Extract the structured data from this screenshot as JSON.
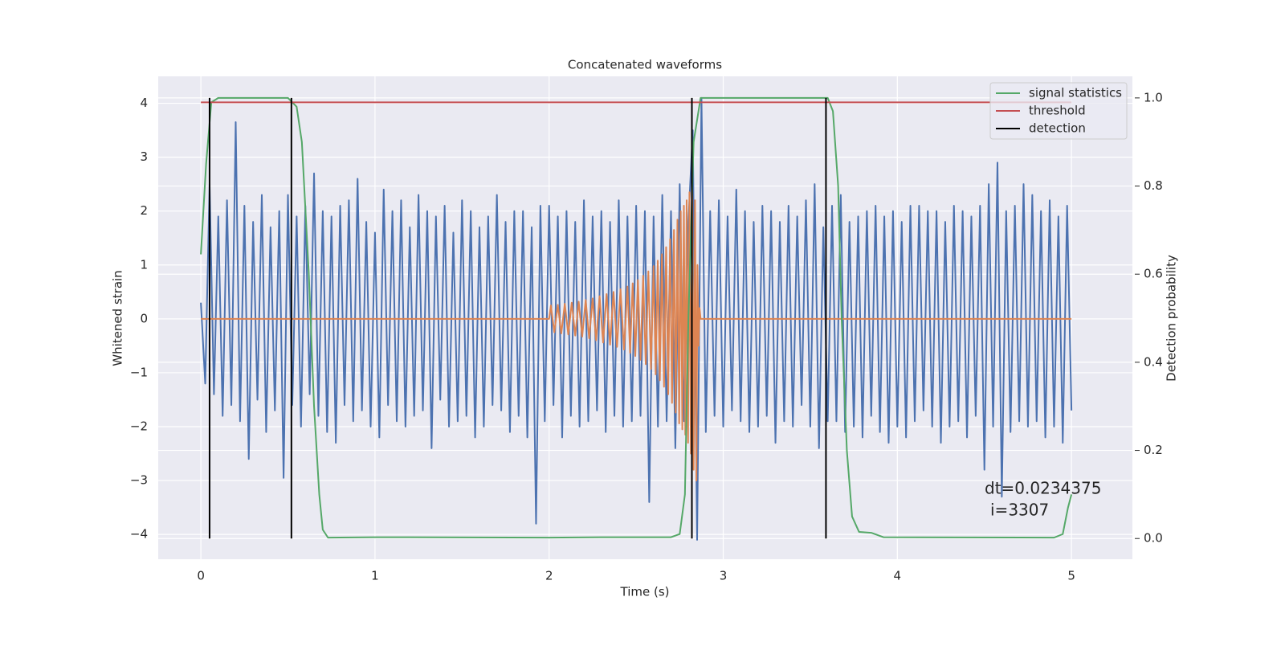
{
  "chart_data": {
    "type": "line",
    "title": "Concatenated waveforms",
    "xlabel": "Time (s)",
    "ylabel": "Whitened strain",
    "y2label": "Detection probability",
    "xlim": [
      -0.245,
      5.35
    ],
    "ylim": [
      -4.46,
      4.5
    ],
    "y2lim": [
      -0.047,
      1.049
    ],
    "xticks": [
      0,
      1,
      2,
      3,
      4,
      5
    ],
    "yticks": [
      {
        "value": -4,
        "label": "−4"
      },
      {
        "value": -3,
        "label": "−3"
      },
      {
        "value": -2,
        "label": "−2"
      },
      {
        "value": -1,
        "label": "−1"
      },
      0,
      1,
      2,
      3,
      4
    ],
    "y2ticks": [
      {
        "value": 0,
        "label": "0.0"
      },
      0.2,
      0.4,
      0.6,
      0.8,
      {
        "value": 1,
        "label": "1.0"
      }
    ],
    "grid": true,
    "legend": "upper right",
    "annotations": [
      "dt=0.0234375",
      "i=3307"
    ],
    "series": [
      {
        "color": "#4c72b0",
        "axis": "y",
        "x": [
          0,
          0.025,
          0.05,
          0.075,
          0.1,
          0.125,
          0.15,
          0.175,
          0.2,
          0.225,
          0.25,
          0.275,
          0.3,
          0.325,
          0.35,
          0.375,
          0.4,
          0.425,
          0.45,
          0.475,
          0.5,
          0.525,
          0.55,
          0.575,
          0.6,
          0.625,
          0.65,
          0.675,
          0.7,
          0.725,
          0.75,
          0.775,
          0.8,
          0.825,
          0.85,
          0.875,
          0.9,
          0.925,
          0.95,
          0.975,
          1,
          1.025,
          1.05,
          1.075,
          1.1,
          1.125,
          1.15,
          1.175,
          1.2,
          1.225,
          1.25,
          1.275,
          1.3,
          1.325,
          1.35,
          1.375,
          1.4,
          1.425,
          1.45,
          1.475,
          1.5,
          1.525,
          1.55,
          1.575,
          1.6,
          1.625,
          1.65,
          1.675,
          1.7,
          1.725,
          1.75,
          1.775,
          1.8,
          1.825,
          1.85,
          1.875,
          1.9,
          1.925,
          1.95,
          1.975,
          2,
          2.025,
          2.05,
          2.075,
          2.1,
          2.125,
          2.15,
          2.175,
          2.2,
          2.225,
          2.25,
          2.275,
          2.3,
          2.325,
          2.35,
          2.375,
          2.4,
          2.425,
          2.45,
          2.475,
          2.5,
          2.525,
          2.55,
          2.575,
          2.6,
          2.625,
          2.65,
          2.675,
          2.7,
          2.725,
          2.75,
          2.775,
          2.8,
          2.825,
          2.85,
          2.875,
          2.9,
          2.925,
          2.95,
          2.975,
          3,
          3.025,
          3.05,
          3.075,
          3.1,
          3.125,
          3.15,
          3.175,
          3.2,
          3.225,
          3.25,
          3.275,
          3.3,
          3.325,
          3.35,
          3.375,
          3.4,
          3.425,
          3.45,
          3.475,
          3.5,
          3.525,
          3.55,
          3.575,
          3.6,
          3.625,
          3.65,
          3.675,
          3.7,
          3.725,
          3.75,
          3.775,
          3.8,
          3.825,
          3.85,
          3.875,
          3.9,
          3.925,
          3.95,
          3.975,
          4,
          4.025,
          4.05,
          4.075,
          4.1,
          4.125,
          4.15,
          4.175,
          4.2,
          4.225,
          4.25,
          4.275,
          4.3,
          4.325,
          4.35,
          4.375,
          4.4,
          4.425,
          4.45,
          4.475,
          4.5,
          4.525,
          4.55,
          4.575,
          4.6,
          4.625,
          4.65,
          4.675,
          4.7,
          4.725,
          4.75,
          4.775,
          4.8,
          4.825,
          4.85,
          4.875,
          4.9,
          4.925,
          4.95,
          4.975,
          5
        ],
        "values": [
          0.3,
          -1.2,
          2.5,
          -1.4,
          1.9,
          -1.8,
          2.2,
          -1.6,
          3.65,
          -1.9,
          2.1,
          -2.6,
          1.8,
          -1.5,
          2.3,
          -2.1,
          1.7,
          -1.7,
          2.0,
          -2.95,
          2.3,
          -1.6,
          1.9,
          -2.0,
          2.1,
          -1.4,
          2.7,
          -1.8,
          2.0,
          -2.1,
          1.9,
          -2.3,
          2.1,
          -1.6,
          2.2,
          -1.9,
          2.6,
          -1.7,
          1.8,
          -2.0,
          1.6,
          -2.2,
          2.4,
          -1.6,
          2.0,
          -1.9,
          2.2,
          -2.0,
          1.7,
          -1.8,
          2.3,
          -1.7,
          2.0,
          -2.4,
          1.9,
          -1.5,
          2.1,
          -2.0,
          1.6,
          -1.9,
          2.2,
          -1.8,
          2.0,
          -2.2,
          1.7,
          -2.0,
          1.9,
          -1.6,
          2.3,
          -1.7,
          1.8,
          -2.1,
          2.0,
          -1.8,
          2.0,
          -2.2,
          1.7,
          -3.8,
          2.1,
          -1.9,
          2.1,
          -1.6,
          1.9,
          -2.2,
          2.0,
          -1.8,
          1.8,
          -2.0,
          2.2,
          -1.9,
          1.9,
          -1.7,
          2.0,
          -2.1,
          1.8,
          -1.8,
          2.2,
          -2.0,
          1.9,
          -1.9,
          2.1,
          -1.8,
          2.0,
          -3.4,
          1.9,
          -2.0,
          2.3,
          -1.9,
          2.0,
          -2.4,
          2.5,
          -1.9,
          1.8,
          3.5,
          -4.1,
          4.1,
          -2.1,
          2.0,
          -1.8,
          2.2,
          -2.0,
          1.9,
          -1.7,
          2.4,
          -1.9,
          2.0,
          -2.1,
          1.8,
          -2.0,
          2.1,
          -1.8,
          2.0,
          -2.3,
          1.8,
          -1.9,
          2.1,
          -2.0,
          1.9,
          -1.6,
          2.2,
          -2.0,
          2.5,
          -2.4,
          1.7,
          -1.9,
          2.1,
          -1.9,
          2.3,
          -2.1,
          1.8,
          -2.0,
          1.9,
          -2.2,
          2.0,
          -1.8,
          2.1,
          -2.1,
          1.9,
          -2.3,
          2.0,
          -2.0,
          1.8,
          -2.2,
          2.1,
          -1.9,
          2.1,
          -1.7,
          2.0,
          -2.0,
          2.0,
          -2.3,
          1.8,
          -2.0,
          2.1,
          -1.9,
          2.0,
          -2.2,
          1.9,
          -1.8,
          2.1,
          -2.8,
          2.5,
          -2.0,
          2.9,
          -3.3,
          2.0,
          -2.1,
          2.1,
          -1.9,
          2.5,
          -2.0,
          2.3,
          -1.9,
          2.0,
          -2.2,
          2.2,
          -2.0,
          1.9,
          -2.3,
          2.1,
          -1.7
        ]
      },
      {
        "color": "#dd8452",
        "axis": "y",
        "x": [
          0,
          2.0,
          2.01,
          2.03,
          2.05,
          2.07,
          2.09,
          2.11,
          2.13,
          2.15,
          2.17,
          2.19,
          2.21,
          2.23,
          2.25,
          2.27,
          2.29,
          2.31,
          2.33,
          2.35,
          2.37,
          2.39,
          2.41,
          2.43,
          2.45,
          2.465,
          2.48,
          2.495,
          2.51,
          2.525,
          2.54,
          2.555,
          2.57,
          2.585,
          2.6,
          2.612,
          2.624,
          2.636,
          2.648,
          2.66,
          2.672,
          2.684,
          2.695,
          2.706,
          2.717,
          2.727,
          2.737,
          2.747,
          2.756,
          2.765,
          2.774,
          2.782,
          2.79,
          2.798,
          2.806,
          2.814,
          2.822,
          2.83,
          2.838,
          2.846,
          2.852,
          2.858,
          2.864,
          2.87,
          5
        ],
        "values": [
          0,
          0,
          0.25,
          -0.25,
          0.26,
          -0.27,
          0.28,
          -0.29,
          0.3,
          -0.31,
          0.32,
          -0.33,
          0.35,
          -0.36,
          0.38,
          -0.4,
          0.42,
          -0.44,
          0.46,
          -0.48,
          0.5,
          -0.52,
          0.55,
          -0.57,
          0.6,
          -0.63,
          0.66,
          -0.69,
          0.72,
          -0.76,
          0.8,
          -0.84,
          0.88,
          -0.93,
          0.98,
          -1.03,
          1.08,
          -1.14,
          1.2,
          -1.26,
          1.33,
          -1.4,
          1.48,
          -1.56,
          1.65,
          -1.74,
          1.84,
          -1.94,
          2.0,
          -2.05,
          2.1,
          -2.15,
          2.2,
          -2.3,
          2.35,
          -2.5,
          2.4,
          -2.8,
          2.2,
          -3.0,
          1.0,
          -0.5,
          0.2,
          0,
          0
        ]
      },
      {
        "name": "signal statistics",
        "color": "#55a868",
        "axis": "y2",
        "x": [
          0,
          0.03,
          0.06,
          0.1,
          0.5,
          0.55,
          0.58,
          0.62,
          0.65,
          0.68,
          0.7,
          0.73,
          1,
          2,
          2.3,
          2.7,
          2.75,
          2.78,
          2.8,
          2.83,
          2.87,
          3.6,
          3.63,
          3.66,
          3.68,
          3.71,
          3.74,
          3.78,
          3.85,
          3.92,
          4.9,
          4.95,
          4.98,
          5
        ],
        "values": [
          0.645,
          0.85,
          0.99,
          1.0,
          1.0,
          0.98,
          0.9,
          0.6,
          0.3,
          0.1,
          0.02,
          0.002,
          0.003,
          0.002,
          0.003,
          0.003,
          0.01,
          0.1,
          0.5,
          0.9,
          1.0,
          1.0,
          0.97,
          0.8,
          0.5,
          0.2,
          0.05,
          0.015,
          0.013,
          0.003,
          0.002,
          0.01,
          0.07,
          0.1
        ]
      },
      {
        "name": "threshold",
        "color": "#c44e52",
        "axis": "y2",
        "x": [
          0,
          5
        ],
        "values": [
          0.99,
          0.99
        ]
      },
      {
        "name": "detection",
        "color": "#000000",
        "axis": "y2",
        "x": [
          0.05,
          0.52,
          2.82,
          3.59
        ],
        "ymin": 0,
        "ymax": 1
      }
    ]
  }
}
